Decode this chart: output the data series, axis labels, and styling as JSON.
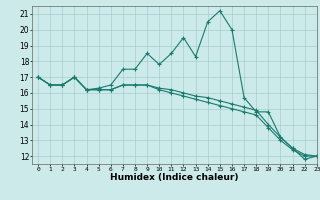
{
  "xlabel": "Humidex (Indice chaleur)",
  "xlim": [
    -0.5,
    23
  ],
  "ylim": [
    11.5,
    21.5
  ],
  "xticks": [
    0,
    1,
    2,
    3,
    4,
    5,
    6,
    7,
    8,
    9,
    10,
    11,
    12,
    13,
    14,
    15,
    16,
    17,
    18,
    19,
    20,
    21,
    22,
    23
  ],
  "yticks": [
    12,
    13,
    14,
    15,
    16,
    17,
    18,
    19,
    20,
    21
  ],
  "background_color": "#cceaea",
  "grid_color": "#aacccc",
  "line_color": "#1a7a6e",
  "line1_x": [
    0,
    1,
    2,
    3,
    4,
    5,
    6,
    7,
    8,
    9,
    10,
    11,
    12,
    13,
    14,
    15,
    16,
    17,
    18,
    19,
    20,
    21,
    22,
    23
  ],
  "line1_y": [
    17.0,
    16.5,
    16.5,
    17.0,
    16.2,
    16.3,
    16.5,
    17.5,
    17.5,
    18.5,
    17.8,
    18.5,
    19.5,
    18.3,
    20.5,
    21.2,
    20.0,
    15.7,
    14.8,
    14.8,
    13.2,
    12.5,
    11.8,
    12.0
  ],
  "line2_x": [
    0,
    1,
    2,
    3,
    4,
    5,
    6,
    7,
    8,
    9,
    10,
    11,
    12,
    13,
    14,
    15,
    16,
    17,
    18,
    19,
    20,
    21,
    22,
    23
  ],
  "line2_y": [
    17.0,
    16.5,
    16.5,
    17.0,
    16.2,
    16.2,
    16.2,
    16.5,
    16.5,
    16.5,
    16.3,
    16.2,
    16.0,
    15.8,
    15.7,
    15.5,
    15.3,
    15.1,
    14.9,
    14.0,
    13.2,
    12.5,
    12.1,
    12.0
  ],
  "line3_x": [
    0,
    1,
    2,
    3,
    4,
    5,
    6,
    7,
    8,
    9,
    10,
    11,
    12,
    13,
    14,
    15,
    16,
    17,
    18,
    19,
    20,
    21,
    22,
    23
  ],
  "line3_y": [
    17.0,
    16.5,
    16.5,
    17.0,
    16.2,
    16.2,
    16.2,
    16.5,
    16.5,
    16.5,
    16.2,
    16.0,
    15.8,
    15.6,
    15.4,
    15.2,
    15.0,
    14.8,
    14.6,
    13.8,
    13.0,
    12.4,
    12.0,
    12.0
  ]
}
